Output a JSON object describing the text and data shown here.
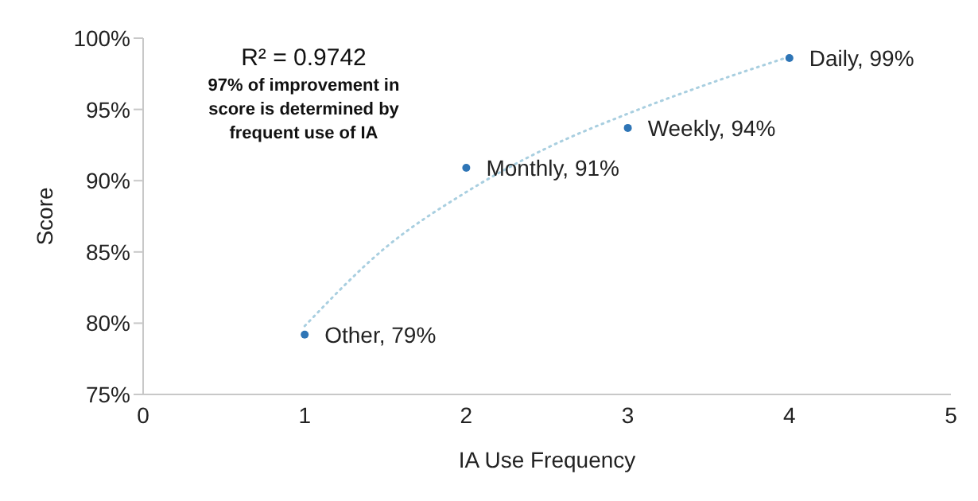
{
  "chart_data": {
    "type": "scatter",
    "xlabel": "IA Use Frequency",
    "ylabel": "Score",
    "x": [
      1,
      2,
      3,
      4
    ],
    "series": [
      {
        "color": "#2e75b6",
        "values": [
          79.2,
          90.9,
          93.7,
          98.6
        ],
        "value_labels": [
          "Other, 79%",
          "Monthly, 91%",
          "Weekly, 94%",
          "Daily, 99%"
        ],
        "marker": "circle"
      },
      {
        "type": "line",
        "color": "#a9cfe0",
        "line_style": "dotted",
        "marker": "none",
        "x": [
          1,
          1.5,
          2,
          2.5,
          3,
          3.5,
          4
        ],
        "values": [
          79.8,
          85.3,
          89.2,
          92.3,
          94.7,
          96.8,
          98.7
        ]
      }
    ],
    "xlim": [
      0,
      5
    ],
    "xticks": [
      0,
      1,
      2,
      3,
      4,
      5
    ],
    "ylim": [
      75,
      100
    ],
    "yticks": [
      {
        "value": 75,
        "label": "75%"
      },
      {
        "value": 80,
        "label": "80%"
      },
      {
        "value": 85,
        "label": "85%"
      },
      {
        "value": 90,
        "label": "90%"
      },
      {
        "value": 95,
        "label": "95%"
      },
      {
        "value": 100,
        "label": "100%"
      }
    ],
    "grid": false,
    "legend": false,
    "annotations": [
      "R² = 0.9742",
      "97% of improvement in score is determined by frequent use of IA"
    ]
  }
}
